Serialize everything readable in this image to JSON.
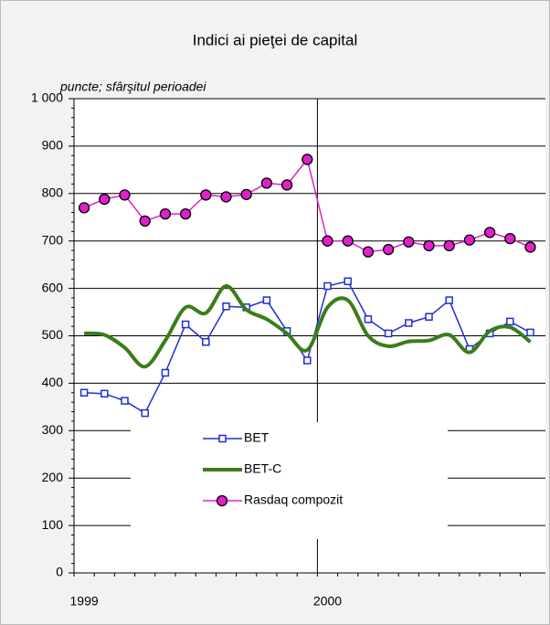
{
  "chart_data": {
    "type": "line",
    "title": "Indici ai pieţei de capital",
    "subtitle": "puncte; sfârşitul perioadei",
    "categories": [
      "1999",
      null,
      null,
      null,
      null,
      null,
      null,
      null,
      null,
      null,
      null,
      null,
      "2000",
      null,
      null,
      null,
      null,
      null,
      null,
      null,
      null,
      null,
      null
    ],
    "series": [
      {
        "name": "BET",
        "color": "#1f2fd6",
        "marker": "square",
        "values": [
          380,
          378,
          363,
          337,
          422,
          524,
          487,
          562,
          560,
          575,
          510,
          448,
          605,
          615,
          535,
          505,
          527,
          540,
          575,
          472,
          505,
          530,
          507
        ]
      },
      {
        "name": "BET-C",
        "color": "#3a7d1a",
        "marker": "none",
        "values": [
          505,
          502,
          475,
          435,
          490,
          560,
          548,
          605,
          555,
          535,
          505,
          470,
          560,
          575,
          500,
          478,
          488,
          490,
          502,
          465,
          510,
          518,
          487
        ]
      },
      {
        "name": "Rasdaq compozit",
        "color": "#e020c8",
        "marker": "circle",
        "values": [
          770,
          788,
          797,
          742,
          757,
          757,
          797,
          793,
          798,
          822,
          818,
          872,
          700,
          700,
          677,
          682,
          698,
          690,
          690,
          702,
          718,
          705,
          687
        ]
      }
    ],
    "ylim": [
      0,
      1000
    ],
    "yticks": [
      0,
      100,
      200,
      300,
      400,
      500,
      600,
      700,
      800,
      900,
      {
        "value": 1000,
        "label": "1 000"
      }
    ],
    "grid": true
  }
}
